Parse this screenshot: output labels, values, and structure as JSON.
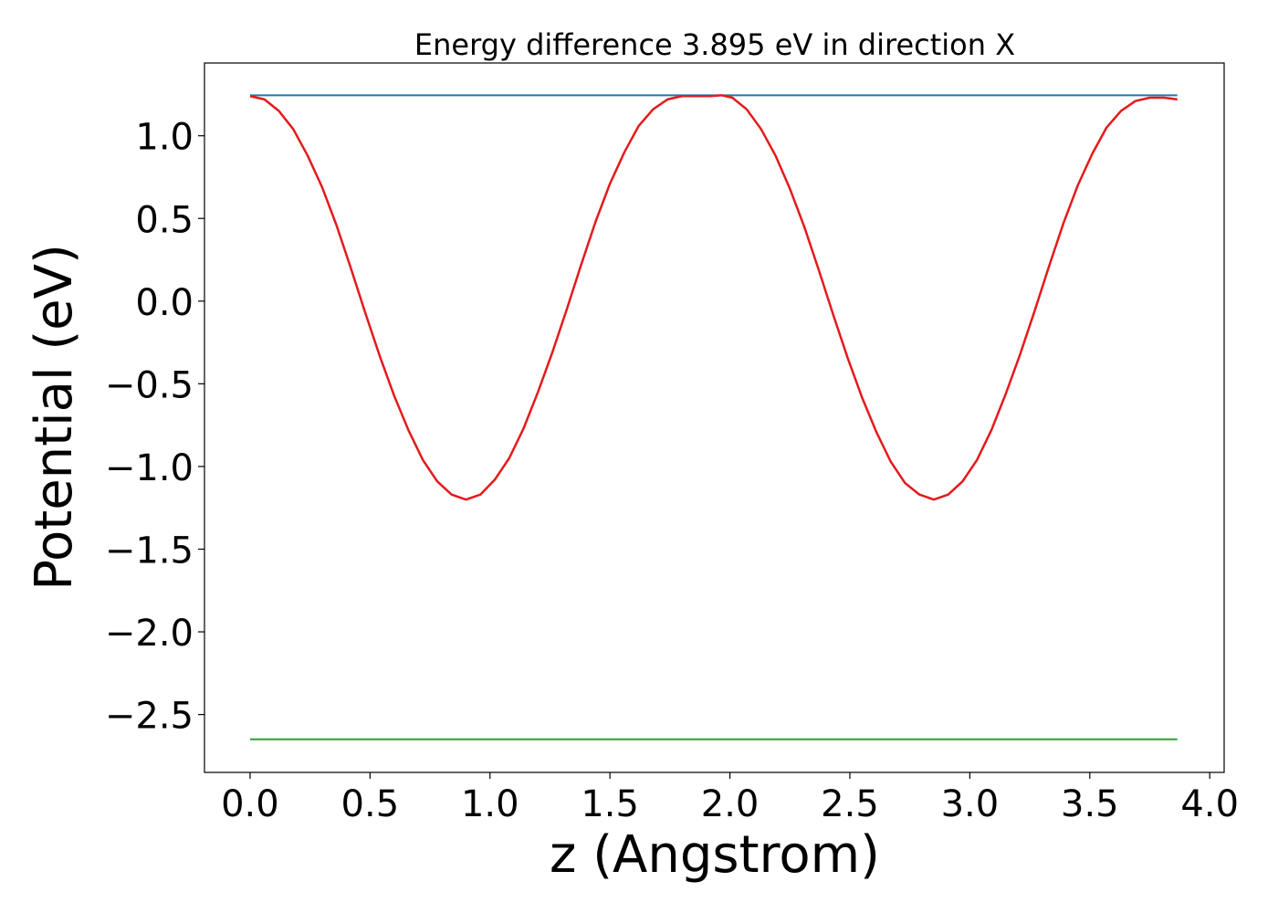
{
  "chart_data": {
    "type": "line",
    "title": "Energy difference 3.895 eV in direction X",
    "xlabel": "z (Angstrom)",
    "ylabel": "Potential (eV)",
    "xlim": [
      -0.19,
      4.06
    ],
    "ylim": [
      -2.85,
      1.44
    ],
    "xticks": [
      0.0,
      0.5,
      1.0,
      1.5,
      2.0,
      2.5,
      3.0,
      3.5,
      4.0
    ],
    "xtick_labels": [
      "0.0",
      "0.5",
      "1.0",
      "1.5",
      "2.0",
      "2.5",
      "3.0",
      "3.5",
      "4.0"
    ],
    "yticks": [
      1.0,
      0.5,
      0.0,
      -0.5,
      -1.0,
      -1.5,
      -2.0,
      -2.5
    ],
    "ytick_labels": [
      "1.0",
      "0.5",
      "0.0",
      "−0.5",
      "−1.0",
      "−1.5",
      "−2.0",
      "−2.5"
    ],
    "grid": false,
    "series": [
      {
        "color": "#1f77b4",
        "x": [
          0.0,
          3.865
        ],
        "y": [
          1.245,
          1.245
        ]
      },
      {
        "color": "#2ca02c",
        "x": [
          0.0,
          3.865
        ],
        "y": [
          -2.65,
          -2.65
        ]
      },
      {
        "color": "#e41a1c",
        "x": [
          0.0,
          0.06,
          0.12,
          0.18,
          0.24,
          0.3,
          0.36,
          0.42,
          0.48,
          0.54,
          0.6,
          0.66,
          0.72,
          0.78,
          0.84,
          0.9,
          0.96,
          1.02,
          1.08,
          1.14,
          1.2,
          1.26,
          1.32,
          1.38,
          1.44,
          1.5,
          1.56,
          1.62,
          1.68,
          1.74,
          1.8,
          1.86,
          1.92,
          1.965,
          2.01,
          2.07,
          2.13,
          2.19,
          2.25,
          2.31,
          2.37,
          2.43,
          2.49,
          2.55,
          2.61,
          2.67,
          2.73,
          2.79,
          2.85,
          2.91,
          2.97,
          3.03,
          3.09,
          3.15,
          3.21,
          3.27,
          3.33,
          3.39,
          3.45,
          3.51,
          3.57,
          3.63,
          3.69,
          3.75,
          3.81,
          3.865
        ],
        "y": [
          1.24,
          1.22,
          1.15,
          1.04,
          0.88,
          0.69,
          0.46,
          0.2,
          -0.07,
          -0.33,
          -0.57,
          -0.78,
          -0.96,
          -1.09,
          -1.17,
          -1.2,
          -1.17,
          -1.08,
          -0.95,
          -0.77,
          -0.55,
          -0.31,
          -0.05,
          0.22,
          0.48,
          0.71,
          0.9,
          1.06,
          1.16,
          1.22,
          1.24,
          1.24,
          1.24,
          1.245,
          1.23,
          1.16,
          1.04,
          0.88,
          0.68,
          0.45,
          0.19,
          -0.08,
          -0.34,
          -0.58,
          -0.79,
          -0.97,
          -1.1,
          -1.17,
          -1.2,
          -1.17,
          -1.09,
          -0.96,
          -0.78,
          -0.56,
          -0.32,
          -0.06,
          0.21,
          0.47,
          0.7,
          0.89,
          1.05,
          1.15,
          1.21,
          1.23,
          1.23,
          1.22
        ]
      }
    ]
  }
}
